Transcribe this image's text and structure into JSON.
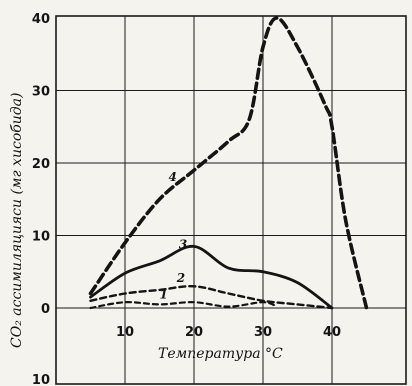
{
  "chart_data": {
    "type": "line",
    "xlabel": "Температура °С",
    "ylabel": "СО₂ ассимиляцияси (мг хисобида)",
    "xlim": [
      0,
      50
    ],
    "ylim": [
      -10,
      40
    ],
    "x_ticks": [
      "10",
      "20",
      "30",
      "40"
    ],
    "y_ticks": [
      "0",
      "10",
      "20",
      "30",
      "40"
    ],
    "y_tick_bottom": "10",
    "grid": true,
    "series": [
      {
        "name": "1",
        "x": [
          5,
          10,
          15,
          20,
          25,
          30,
          32
        ],
        "y": [
          0,
          0.8,
          0.5,
          0.8,
          0.2,
          0.8,
          0.2
        ]
      },
      {
        "name": "2",
        "x": [
          5,
          10,
          15,
          20,
          25,
          30,
          35,
          40
        ],
        "y": [
          1,
          2,
          2.5,
          3,
          2,
          1,
          0.5,
          0
        ]
      },
      {
        "name": "3",
        "x": [
          5,
          10,
          15,
          20,
          25,
          30,
          35,
          40
        ],
        "y": [
          1.5,
          4.8,
          6.5,
          8.5,
          5.5,
          5,
          3.5,
          0
        ]
      },
      {
        "name": "4",
        "x": [
          5,
          10,
          15,
          20,
          25,
          28,
          30,
          32,
          35,
          39,
          40,
          42,
          45
        ],
        "y": [
          2,
          9,
          15,
          19,
          23,
          26,
          36,
          40,
          36,
          28,
          25,
          12,
          0
        ]
      }
    ]
  }
}
